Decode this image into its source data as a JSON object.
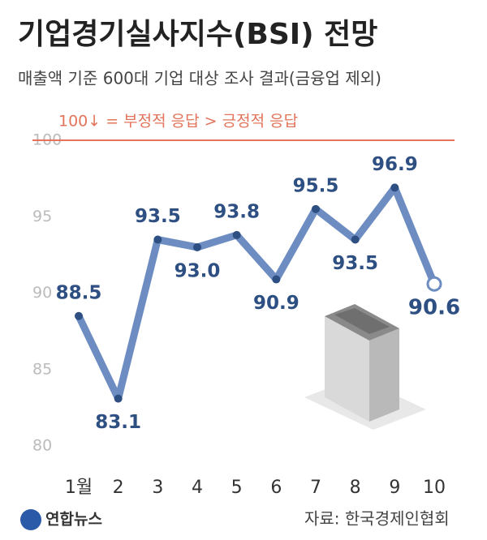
{
  "chart_data": {
    "type": "line",
    "title": "기업경기실사지수(BSI) 전망",
    "subtitle": "매출액 기준 600대 기업 대상 조사 결과(금융업 제외)",
    "annotation": "100↓ = 부정적 응답 > 긍정적 응답",
    "source": "자료: 한국경제인협회",
    "logo": "연합뉴스",
    "categories": [
      "1월",
      "2",
      "3",
      "4",
      "5",
      "6",
      "7",
      "8",
      "9",
      "10"
    ],
    "series": [
      {
        "name": "BSI",
        "color": "#6d8dc2",
        "values": [
          88.5,
          83.1,
          93.5,
          93.0,
          93.8,
          90.9,
          95.5,
          93.5,
          96.9,
          90.6
        ],
        "value_labels": [
          "88.5",
          "83.1",
          "93.5",
          "93.0",
          "93.8",
          "90.9",
          "95.5",
          "93.5",
          "96.9",
          "90.6"
        ]
      }
    ],
    "ylim": [
      80,
      100
    ],
    "yticks": [
      80,
      85,
      90,
      95,
      100
    ],
    "grid": false
  }
}
